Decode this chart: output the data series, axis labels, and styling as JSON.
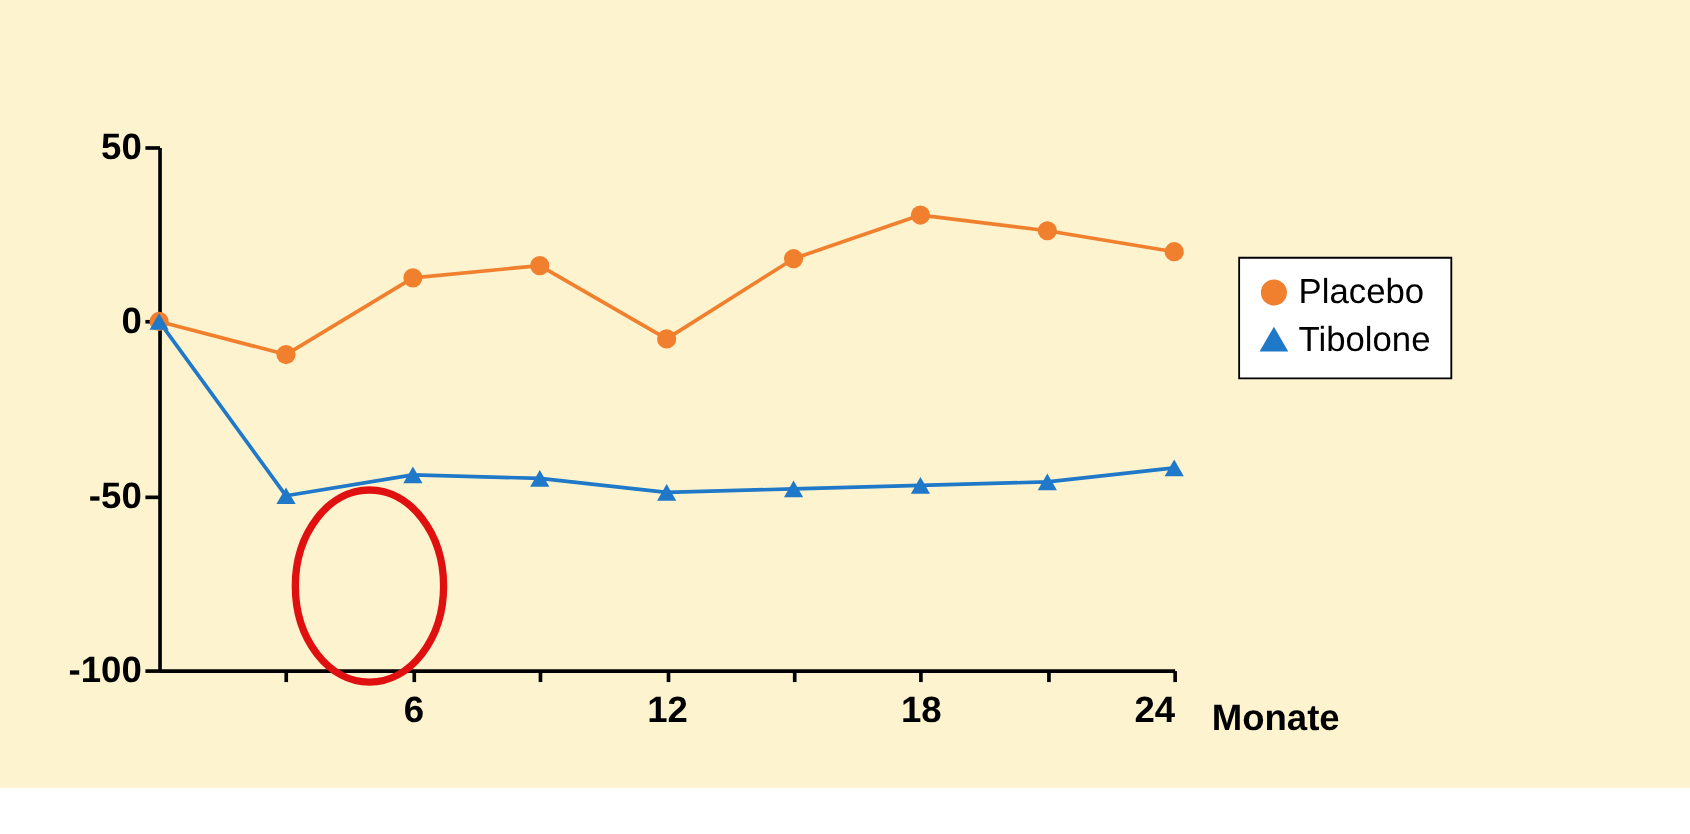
{
  "chart_data": {
    "type": "line",
    "xlabel": "Monate",
    "x": [
      0,
      3,
      6,
      9,
      12,
      15,
      18,
      21,
      24
    ],
    "series": [
      {
        "name": "Placebo",
        "color": "#f07f2e",
        "marker": "circle",
        "values": [
          0,
          -9.5,
          12.5,
          16,
          -5,
          18,
          30.5,
          26,
          20
        ]
      },
      {
        "name": "Tibolone",
        "color": "#1f78c8",
        "marker": "triangle",
        "values": [
          0,
          -50,
          -44,
          -45,
          -49,
          -48,
          -47,
          -46,
          -42
        ]
      }
    ],
    "xlim": [
      0,
      24
    ],
    "xticks": [
      {
        "value": 3,
        "label": null
      },
      6,
      {
        "value": 9,
        "label": null
      },
      12,
      {
        "value": 15,
        "label": null
      },
      18,
      {
        "value": 21,
        "label": null
      },
      24
    ],
    "ylim": [
      -100,
      50
    ],
    "yticks": [
      -100,
      -50,
      0,
      50
    ],
    "grid": false,
    "legend": "right",
    "line_style": "solid"
  }
}
